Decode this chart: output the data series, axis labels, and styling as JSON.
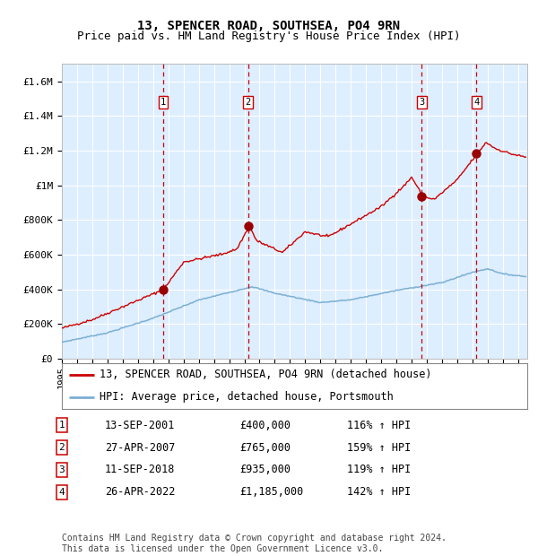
{
  "title": "13, SPENCER ROAD, SOUTHSEA, PO4 9RN",
  "subtitle": "Price paid vs. HM Land Registry's House Price Index (HPI)",
  "ylim": [
    0,
    1700000
  ],
  "yticks": [
    0,
    200000,
    400000,
    600000,
    800000,
    1000000,
    1200000,
    1400000,
    1600000
  ],
  "ytick_labels": [
    "£0",
    "£200K",
    "£400K",
    "£600K",
    "£800K",
    "£1M",
    "£1.2M",
    "£1.4M",
    "£1.6M"
  ],
  "background_color": "#ffffff",
  "plot_bg_color": "#ddeeff",
  "grid_color": "#ffffff",
  "sale_labels": [
    "1",
    "2",
    "3",
    "4"
  ],
  "sale_label_text": [
    "13-SEP-2001",
    "27-APR-2007",
    "11-SEP-2018",
    "26-APR-2022"
  ],
  "sale_prices_text": [
    "£400,000",
    "£765,000",
    "£935,000",
    "£1,185,000"
  ],
  "sale_pct_text": [
    "116% ↑ HPI",
    "159% ↑ HPI",
    "119% ↑ HPI",
    "142% ↑ HPI"
  ],
  "line_color_red": "#cc0000",
  "line_color_blue": "#7bafd4",
  "dot_color": "#990000",
  "vline_color": "#cc0000",
  "legend_line1": "13, SPENCER ROAD, SOUTHSEA, PO4 9RN (detached house)",
  "legend_line2": "HPI: Average price, detached house, Portsmouth",
  "footnote": "Contains HM Land Registry data © Crown copyright and database right 2024.\nThis data is licensed under the Open Government Licence v3.0.",
  "title_fontsize": 10,
  "subtitle_fontsize": 9,
  "tick_fontsize": 8,
  "legend_fontsize": 8.5,
  "table_fontsize": 8.5,
  "footnote_fontsize": 7
}
